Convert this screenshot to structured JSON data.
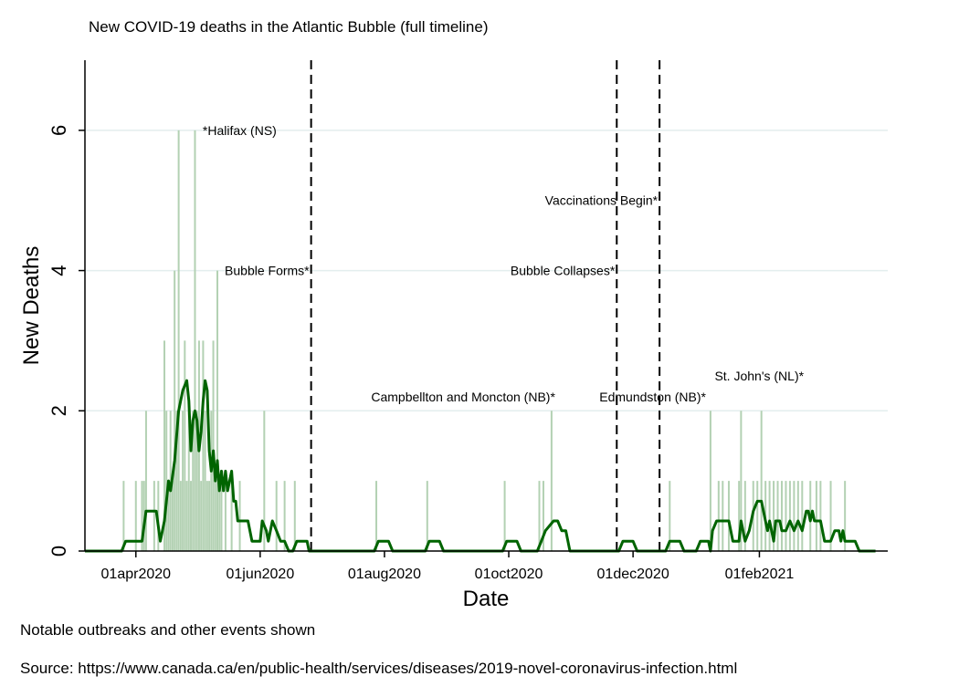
{
  "chart_data": {
    "type": "bar",
    "title": "New COVID-19 deaths in the Atlantic Bubble (full timeline)",
    "xlabel": "Date",
    "ylabel": "New Deaths",
    "x_start": "2020-03-07",
    "x_end": "2021-04-05",
    "ylim": [
      0,
      7
    ],
    "y_ticks": [
      0,
      2,
      4,
      6
    ],
    "x_ticks": [
      {
        "date": "2020-04-01",
        "label": "01apr2020"
      },
      {
        "date": "2020-06-01",
        "label": "01jun2020"
      },
      {
        "date": "2020-08-01",
        "label": "01aug2020"
      },
      {
        "date": "2020-10-01",
        "label": "01oct2020"
      },
      {
        "date": "2020-12-01",
        "label": "01dec2020"
      },
      {
        "date": "2021-02-01",
        "label": "01feb2021"
      }
    ],
    "grid": true,
    "series": [
      {
        "type": "bar",
        "color": "#b3d1b3",
        "points": [
          [
            "2020-03-26",
            1
          ],
          [
            "2020-04-01",
            1
          ],
          [
            "2020-04-04",
            1
          ],
          [
            "2020-04-05",
            1
          ],
          [
            "2020-04-06",
            2
          ],
          [
            "2020-04-10",
            1
          ],
          [
            "2020-04-12",
            1
          ],
          [
            "2020-04-15",
            3
          ],
          [
            "2020-04-16",
            2
          ],
          [
            "2020-04-17",
            1
          ],
          [
            "2020-04-18",
            2
          ],
          [
            "2020-04-19",
            1
          ],
          [
            "2020-04-20",
            4
          ],
          [
            "2020-04-21",
            2
          ],
          [
            "2020-04-22",
            6
          ],
          [
            "2020-04-23",
            1
          ],
          [
            "2020-04-24",
            2
          ],
          [
            "2020-04-25",
            3
          ],
          [
            "2020-04-26",
            1
          ],
          [
            "2020-04-27",
            2
          ],
          [
            "2020-04-28",
            1
          ],
          [
            "2020-04-29",
            2
          ],
          [
            "2020-04-30",
            6
          ],
          [
            "2020-05-01",
            2
          ],
          [
            "2020-05-02",
            3
          ],
          [
            "2020-05-03",
            1
          ],
          [
            "2020-05-04",
            3
          ],
          [
            "2020-05-05",
            2
          ],
          [
            "2020-05-06",
            1
          ],
          [
            "2020-05-07",
            1
          ],
          [
            "2020-05-08",
            2
          ],
          [
            "2020-05-09",
            3
          ],
          [
            "2020-05-10",
            1
          ],
          [
            "2020-05-11",
            4
          ],
          [
            "2020-05-12",
            1
          ],
          [
            "2020-05-13",
            1
          ],
          [
            "2020-05-15",
            1
          ],
          [
            "2020-05-18",
            1
          ],
          [
            "2020-05-22",
            1
          ],
          [
            "2020-06-03",
            2
          ],
          [
            "2020-06-09",
            1
          ],
          [
            "2020-06-13",
            1
          ],
          [
            "2020-06-18",
            1
          ],
          [
            "2020-07-28",
            1
          ],
          [
            "2020-08-22",
            1
          ],
          [
            "2020-09-29",
            1
          ],
          [
            "2020-10-16",
            1
          ],
          [
            "2020-10-18",
            1
          ],
          [
            "2020-10-22",
            2
          ],
          [
            "2020-12-19",
            1
          ],
          [
            "2021-01-08",
            2
          ],
          [
            "2021-01-12",
            1
          ],
          [
            "2021-01-14",
            1
          ],
          [
            "2021-01-17",
            1
          ],
          [
            "2021-01-22",
            1
          ],
          [
            "2021-01-23",
            2
          ],
          [
            "2021-01-25",
            1
          ],
          [
            "2021-01-29",
            1
          ],
          [
            "2021-01-31",
            1
          ],
          [
            "2021-02-02",
            2
          ],
          [
            "2021-02-04",
            1
          ],
          [
            "2021-02-06",
            1
          ],
          [
            "2021-02-08",
            1
          ],
          [
            "2021-02-10",
            1
          ],
          [
            "2021-02-12",
            1
          ],
          [
            "2021-02-14",
            1
          ],
          [
            "2021-02-16",
            1
          ],
          [
            "2021-02-18",
            1
          ],
          [
            "2021-02-20",
            1
          ],
          [
            "2021-02-22",
            1
          ],
          [
            "2021-02-26",
            1
          ],
          [
            "2021-03-01",
            1
          ],
          [
            "2021-03-03",
            1
          ],
          [
            "2021-03-08",
            1
          ],
          [
            "2021-03-15",
            1
          ]
        ]
      },
      {
        "type": "line",
        "color": "#006400",
        "points": [
          [
            "2020-03-07",
            0
          ],
          [
            "2020-03-25",
            0
          ],
          [
            "2020-03-27",
            0.14
          ],
          [
            "2020-04-04",
            0.14
          ],
          [
            "2020-04-06",
            0.57
          ],
          [
            "2020-04-11",
            0.57
          ],
          [
            "2020-04-13",
            0.14
          ],
          [
            "2020-04-15",
            0.43
          ],
          [
            "2020-04-17",
            1
          ],
          [
            "2020-04-18",
            0.86
          ],
          [
            "2020-04-20",
            1.29
          ],
          [
            "2020-04-22",
            2
          ],
          [
            "2020-04-24",
            2.29
          ],
          [
            "2020-04-26",
            2.43
          ],
          [
            "2020-04-27",
            2.14
          ],
          [
            "2020-04-28",
            1.43
          ],
          [
            "2020-04-29",
            1.86
          ],
          [
            "2020-04-30",
            2
          ],
          [
            "2020-05-01",
            1.86
          ],
          [
            "2020-05-02",
            1.43
          ],
          [
            "2020-05-03",
            1.71
          ],
          [
            "2020-05-04",
            2.14
          ],
          [
            "2020-05-05",
            2.43
          ],
          [
            "2020-05-06",
            2.29
          ],
          [
            "2020-05-07",
            1.43
          ],
          [
            "2020-05-08",
            1.14
          ],
          [
            "2020-05-09",
            1.43
          ],
          [
            "2020-05-10",
            1
          ],
          [
            "2020-05-11",
            1.29
          ],
          [
            "2020-05-12",
            0.86
          ],
          [
            "2020-05-13",
            1.14
          ],
          [
            "2020-05-14",
            0.86
          ],
          [
            "2020-05-15",
            1.14
          ],
          [
            "2020-05-16",
            0.86
          ],
          [
            "2020-05-18",
            1.14
          ],
          [
            "2020-05-19",
            0.71
          ],
          [
            "2020-05-20",
            0.71
          ],
          [
            "2020-05-21",
            0.43
          ],
          [
            "2020-05-26",
            0.43
          ],
          [
            "2020-05-28",
            0.14
          ],
          [
            "2020-06-01",
            0.14
          ],
          [
            "2020-06-02",
            0.43
          ],
          [
            "2020-06-04",
            0.29
          ],
          [
            "2020-06-05",
            0.14
          ],
          [
            "2020-06-07",
            0.43
          ],
          [
            "2020-06-09",
            0.29
          ],
          [
            "2020-06-11",
            0.14
          ],
          [
            "2020-06-13",
            0.14
          ],
          [
            "2020-06-15",
            0
          ],
          [
            "2020-06-17",
            0
          ],
          [
            "2020-06-19",
            0.14
          ],
          [
            "2020-06-24",
            0.14
          ],
          [
            "2020-06-25",
            0
          ],
          [
            "2020-07-27",
            0
          ],
          [
            "2020-07-29",
            0.14
          ],
          [
            "2020-08-03",
            0.14
          ],
          [
            "2020-08-05",
            0
          ],
          [
            "2020-08-21",
            0
          ],
          [
            "2020-08-23",
            0.14
          ],
          [
            "2020-08-28",
            0.14
          ],
          [
            "2020-08-30",
            0
          ],
          [
            "2020-09-28",
            0
          ],
          [
            "2020-09-30",
            0.14
          ],
          [
            "2020-10-05",
            0.14
          ],
          [
            "2020-10-07",
            0
          ],
          [
            "2020-10-15",
            0
          ],
          [
            "2020-10-17",
            0.14
          ],
          [
            "2020-10-19",
            0.29
          ],
          [
            "2020-10-23",
            0.43
          ],
          [
            "2020-10-25",
            0.43
          ],
          [
            "2020-10-27",
            0.29
          ],
          [
            "2020-10-29",
            0.29
          ],
          [
            "2020-10-31",
            0
          ],
          [
            "2020-11-24",
            0
          ],
          [
            "2020-11-26",
            0.14
          ],
          [
            "2020-12-01",
            0.14
          ],
          [
            "2020-12-03",
            0
          ],
          [
            "2020-12-17",
            0
          ],
          [
            "2020-12-19",
            0.14
          ],
          [
            "2020-12-24",
            0.14
          ],
          [
            "2020-12-26",
            0
          ],
          [
            "2021-01-01",
            0
          ],
          [
            "2021-01-03",
            0.14
          ],
          [
            "2021-01-07",
            0.14
          ],
          [
            "2021-01-08",
            0
          ],
          [
            "2021-01-09",
            0.29
          ],
          [
            "2021-01-11",
            0.43
          ],
          [
            "2021-01-17",
            0.43
          ],
          [
            "2021-01-19",
            0.14
          ],
          [
            "2021-01-22",
            0.14
          ],
          [
            "2021-01-23",
            0.43
          ],
          [
            "2021-01-25",
            0.14
          ],
          [
            "2021-01-27",
            0.29
          ],
          [
            "2021-01-29",
            0.57
          ],
          [
            "2021-01-31",
            0.71
          ],
          [
            "2021-02-02",
            0.71
          ],
          [
            "2021-02-04",
            0.43
          ],
          [
            "2021-02-05",
            0.29
          ],
          [
            "2021-02-06",
            0.43
          ],
          [
            "2021-02-07",
            0.29
          ],
          [
            "2021-02-08",
            0.14
          ],
          [
            "2021-02-09",
            0.43
          ],
          [
            "2021-02-11",
            0.43
          ],
          [
            "2021-02-12",
            0.29
          ],
          [
            "2021-02-14",
            0.29
          ],
          [
            "2021-02-16",
            0.43
          ],
          [
            "2021-02-18",
            0.29
          ],
          [
            "2021-02-20",
            0.43
          ],
          [
            "2021-02-22",
            0.29
          ],
          [
            "2021-02-24",
            0.57
          ],
          [
            "2021-02-25",
            0.57
          ],
          [
            "2021-02-26",
            0.43
          ],
          [
            "2021-02-27",
            0.57
          ],
          [
            "2021-02-28",
            0.43
          ],
          [
            "2021-03-03",
            0.43
          ],
          [
            "2021-03-05",
            0.14
          ],
          [
            "2021-03-08",
            0.14
          ],
          [
            "2021-03-10",
            0.29
          ],
          [
            "2021-03-12",
            0.29
          ],
          [
            "2021-03-13",
            0.14
          ],
          [
            "2021-03-14",
            0.29
          ],
          [
            "2021-03-15",
            0.14
          ],
          [
            "2021-03-20",
            0.14
          ],
          [
            "2021-03-22",
            0
          ],
          [
            "2021-03-30",
            0
          ]
        ]
      }
    ],
    "events": [
      {
        "date": "2020-06-26",
        "label": "Bubble Forms*"
      },
      {
        "date": "2020-11-23",
        "label": "Bubble Collapses*"
      },
      {
        "date": "2020-12-14",
        "label": "Vaccinations Begin*"
      }
    ],
    "annotations": [
      {
        "date": "2020-05-02",
        "value": 6,
        "label": "*Halifax (NS)"
      },
      {
        "date": "2020-10-22",
        "value": 2.2,
        "label": "Campbellton and Moncton (NB)*"
      },
      {
        "date": "2021-01-04",
        "value": 2.2,
        "label": "Edmundston (NB)*"
      },
      {
        "date": "2021-02-21",
        "value": 2.5,
        "label": "St. John's (NL)*"
      }
    ]
  },
  "notes": {
    "outbreaks": "Notable outbreaks and other events shown",
    "source": "Source: https://www.canada.ca/en/public-health/services/diseases/2019-novel-coronavirus-infection.html"
  }
}
